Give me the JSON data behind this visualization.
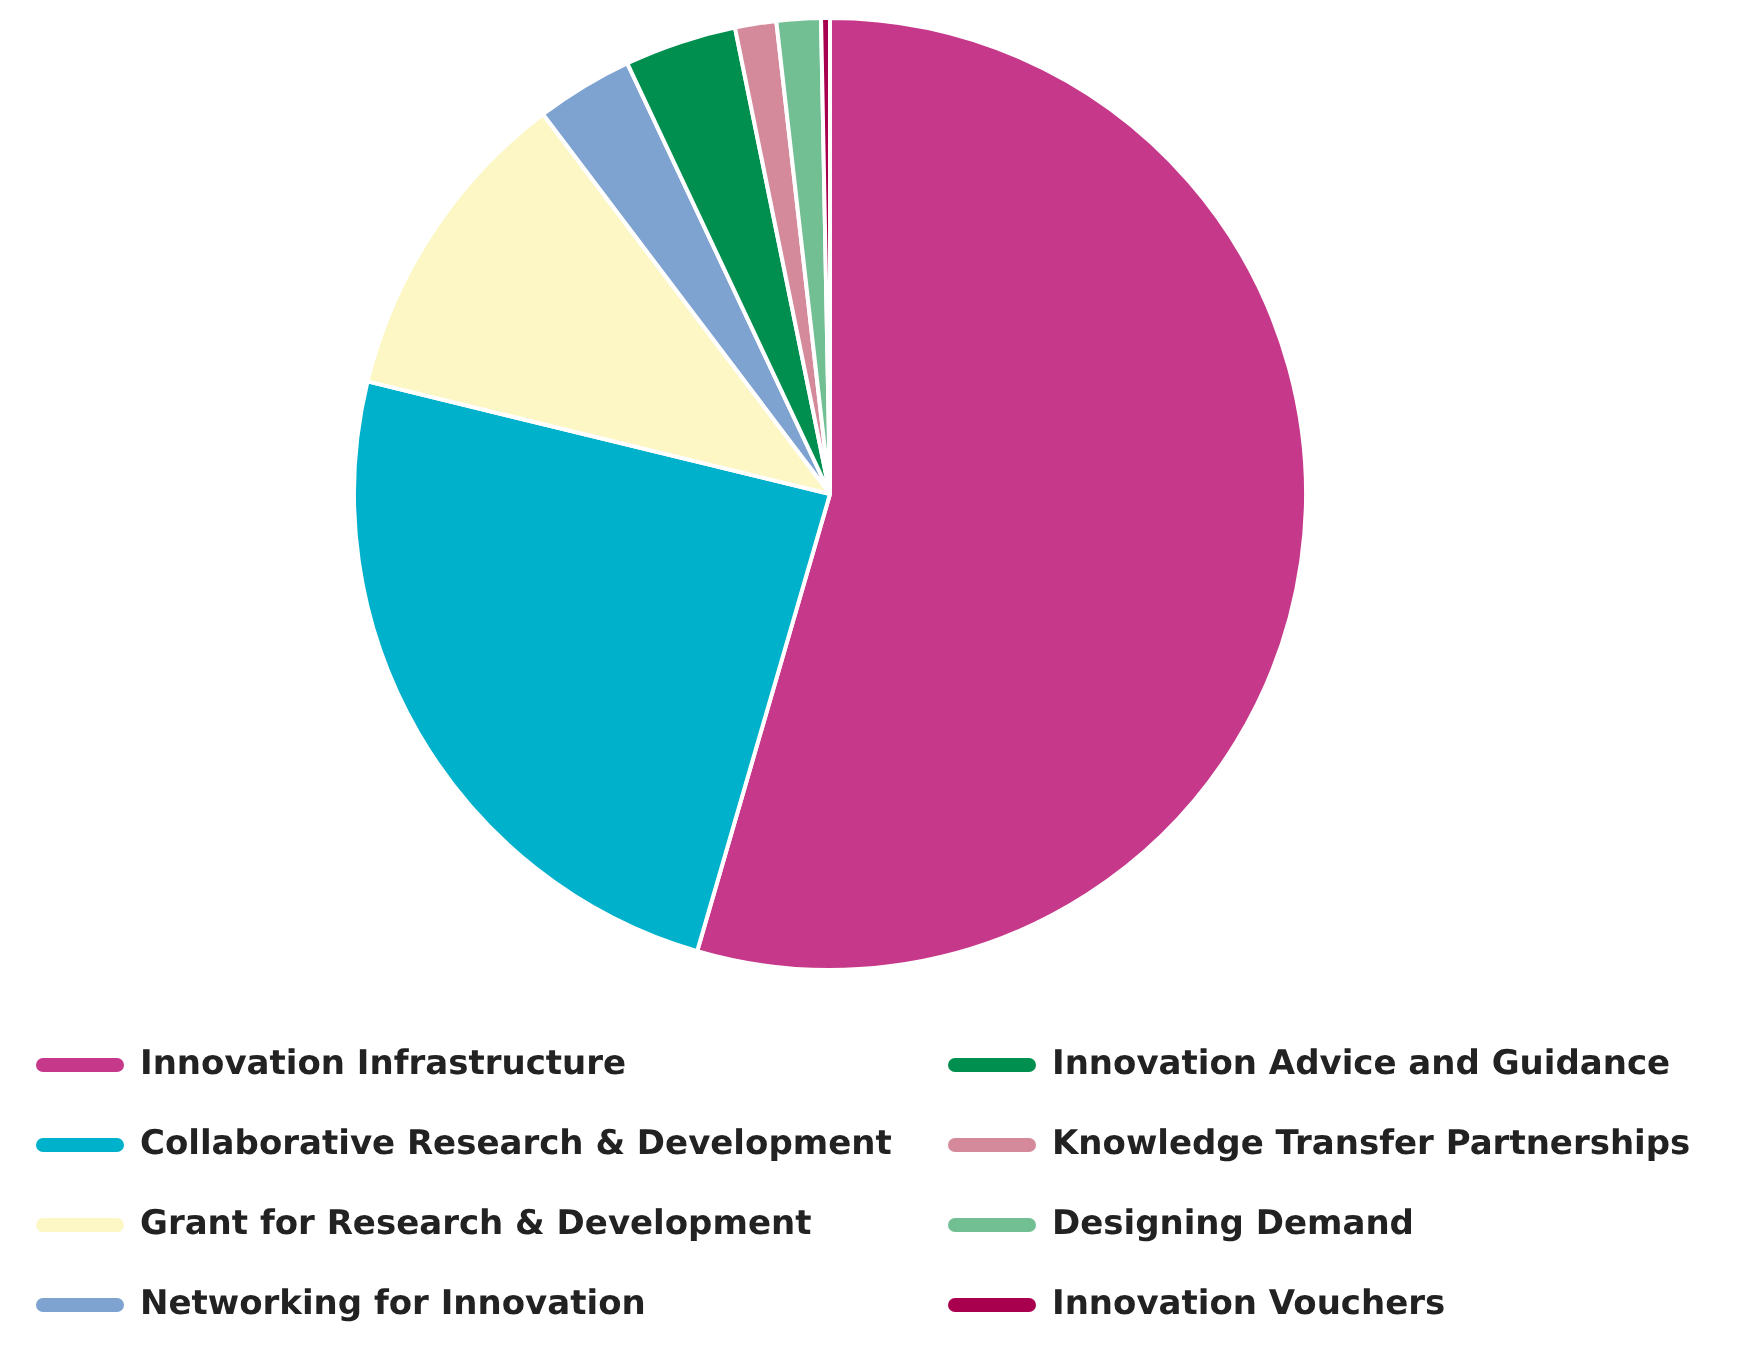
{
  "chart_data": {
    "type": "pie",
    "categories": [
      "Innovation Infrastructure",
      "Collaborative Research & Development",
      "Grant for Research & Development",
      "Networking for Innovation",
      "Innovation Advice and Guidance",
      "Knowledge Transfer Partnerships",
      "Designing Demand",
      "Innovation Vouchers"
    ],
    "values": [
      54.5,
      24.3,
      10.9,
      3.3,
      3.8,
      1.4,
      1.5,
      0.3
    ],
    "colors": [
      "#c6388a",
      "#00b1cc",
      "#fdf7c6",
      "#7ea3d1",
      "#008f4f",
      "#d48a9a",
      "#72bf94",
      "#a8004e"
    ],
    "legend": "bottom"
  }
}
